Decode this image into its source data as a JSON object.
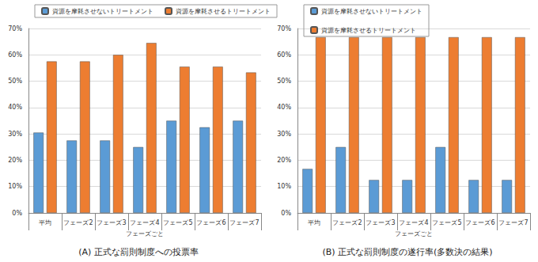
{
  "chart_data": [
    {
      "type": "bar",
      "title": "(A) 正式な罰則制度への投票率",
      "xlabel": "フェーズごと",
      "categories": [
        "平均",
        "フェーズ2",
        "フェーズ3",
        "フェーズ4",
        "フェーズ5",
        "フェーズ6",
        "フェーズ7"
      ],
      "series": [
        {
          "name": "資源を摩耗させないトリートメント",
          "color": "#5b9bd5",
          "values": [
            30.5,
            27.5,
            27.5,
            25,
            35,
            32.5,
            35
          ]
        },
        {
          "name": "資源を摩耗させるトリートメント",
          "color": "#ed7d31",
          "values": [
            57.5,
            57.5,
            60,
            64.5,
            55.5,
            55.5,
            53.3
          ]
        }
      ],
      "ylim": [
        0,
        70
      ],
      "yticks": [
        {
          "value": 0,
          "label": "0%"
        },
        {
          "value": 10,
          "label": "10%"
        },
        {
          "value": 20,
          "label": "20%"
        },
        {
          "value": 30,
          "label": "30%"
        },
        {
          "value": 40,
          "label": "40%"
        },
        {
          "value": 50,
          "label": "50%"
        },
        {
          "value": 60,
          "label": "60%"
        },
        {
          "value": 70,
          "label": "70%"
        }
      ],
      "grid": true,
      "legend": "top"
    },
    {
      "type": "bar",
      "title": "(B) 正式な罰則制度の遂行率(多数決の結果)",
      "xlabel": "フェーズごと",
      "categories": [
        "平均",
        "フェーズ2",
        "フェーズ3",
        "フェーズ4",
        "フェーズ5",
        "フェーズ6",
        "フェーズ7"
      ],
      "series": [
        {
          "name": "資源を摩耗させないトリートメント",
          "color": "#5b9bd5",
          "values": [
            16.7,
            25,
            12.5,
            12.5,
            25,
            12.5,
            12.5
          ]
        },
        {
          "name": "資源を摩耗させるトリートメント",
          "color": "#ed7d31",
          "values": [
            66.7,
            66.7,
            66.7,
            66.7,
            66.7,
            66.7,
            66.7
          ]
        }
      ],
      "ylim": [
        0,
        70
      ],
      "yticks": [
        {
          "value": 0,
          "label": "0%"
        },
        {
          "value": 10,
          "label": "10%"
        },
        {
          "value": 20,
          "label": "20%"
        },
        {
          "value": 30,
          "label": "30%"
        },
        {
          "value": 40,
          "label": "40%"
        },
        {
          "value": 50,
          "label": "50%"
        },
        {
          "value": 60,
          "label": "60%"
        },
        {
          "value": 70,
          "label": "70%"
        }
      ],
      "grid": true,
      "legend": "top"
    }
  ]
}
